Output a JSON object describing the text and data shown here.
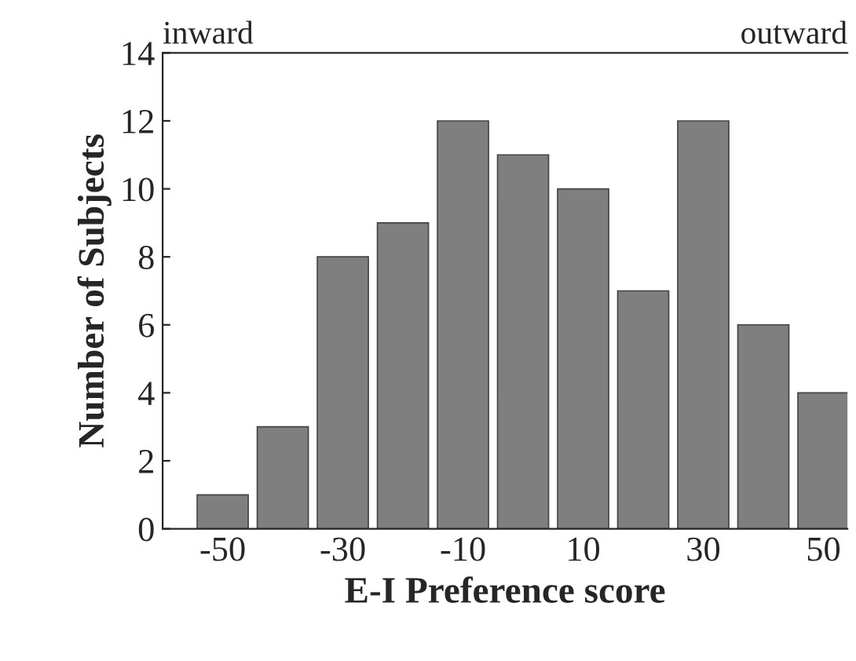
{
  "chart_data": {
    "type": "bar",
    "xlabel": "E-I Preference score",
    "ylabel": "Number of Subjects",
    "x": [
      -50,
      -40,
      -30,
      -20,
      -10,
      0,
      10,
      20,
      30,
      40,
      50
    ],
    "values": [
      1,
      3,
      8,
      9,
      12,
      11,
      10,
      7,
      12,
      6,
      4
    ],
    "color": "#7f7f7f",
    "xlim": [
      -60,
      54
    ],
    "xticks": [
      -50,
      -30,
      -10,
      10,
      30,
      50
    ],
    "ylim": [
      0,
      14
    ],
    "yticks": [
      0,
      2,
      4,
      6,
      8,
      10,
      12,
      14
    ],
    "annotations": [
      "inward",
      "outward"
    ],
    "grid": false,
    "legend": false
  }
}
